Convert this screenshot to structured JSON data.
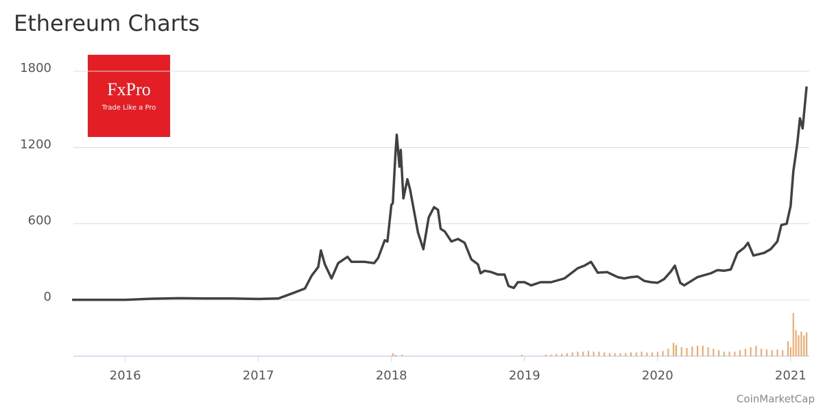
{
  "chart_data": {
    "type": "line",
    "title": "Ethereum Charts",
    "logo": "FxPro",
    "logo_tagline": "Trade Like a Pro",
    "credit": "CoinMarketCap",
    "color": "#404045",
    "x": [
      2015.6,
      2016.0,
      2016.2,
      2016.4,
      2016.6,
      2016.8,
      2017.0,
      2017.15,
      2017.25,
      2017.35,
      2017.4,
      2017.45,
      2017.47,
      2017.5,
      2017.55,
      2017.6,
      2017.67,
      2017.7,
      2017.8,
      2017.87,
      2017.9,
      2017.95,
      2017.97,
      2018.0,
      2018.01,
      2018.03,
      2018.04,
      2018.06,
      2018.07,
      2018.09,
      2018.12,
      2018.14,
      2018.17,
      2018.2,
      2018.24,
      2018.28,
      2018.32,
      2018.35,
      2018.37,
      2018.4,
      2018.45,
      2018.5,
      2018.55,
      2018.6,
      2018.65,
      2018.67,
      2018.7,
      2018.75,
      2018.8,
      2018.85,
      2018.88,
      2018.92,
      2018.95,
      2019.0,
      2019.05,
      2019.12,
      2019.2,
      2019.3,
      2019.4,
      2019.45,
      2019.5,
      2019.55,
      2019.62,
      2019.7,
      2019.75,
      2019.8,
      2019.85,
      2019.9,
      2019.95,
      2020.0,
      2020.05,
      2020.1,
      2020.13,
      2020.17,
      2020.2,
      2020.3,
      2020.4,
      2020.45,
      2020.5,
      2020.55,
      2020.6,
      2020.65,
      2020.68,
      2020.72,
      2020.8,
      2020.85,
      2020.9,
      2020.93,
      2020.97,
      2021.0,
      2021.02,
      2021.05,
      2021.07,
      2021.09,
      2021.12
    ],
    "values": [
      1,
      1,
      10,
      14,
      12,
      12,
      8,
      12,
      50,
      90,
      190,
      260,
      390,
      280,
      170,
      290,
      340,
      300,
      300,
      290,
      330,
      470,
      460,
      750,
      760,
      1150,
      1300,
      1050,
      1180,
      800,
      950,
      870,
      700,
      530,
      400,
      650,
      730,
      710,
      560,
      540,
      460,
      480,
      450,
      320,
      280,
      210,
      230,
      220,
      200,
      200,
      110,
      95,
      140,
      140,
      115,
      140,
      140,
      170,
      250,
      270,
      300,
      215,
      220,
      180,
      170,
      180,
      185,
      150,
      140,
      135,
      165,
      225,
      270,
      135,
      115,
      180,
      210,
      235,
      230,
      240,
      370,
      410,
      450,
      350,
      370,
      400,
      460,
      590,
      600,
      740,
      1010,
      1230,
      1430,
      1350,
      1680
    ],
    "volume": {
      "color": "#f4a460",
      "x": [
        2018.01,
        2018.03,
        2018.08,
        2018.98,
        2019.16,
        2019.2,
        2019.24,
        2019.28,
        2019.32,
        2019.36,
        2019.4,
        2019.44,
        2019.48,
        2019.52,
        2019.56,
        2019.6,
        2019.64,
        2019.68,
        2019.72,
        2019.76,
        2019.8,
        2019.84,
        2019.88,
        2019.92,
        2019.96,
        2020.0,
        2020.04,
        2020.08,
        2020.12,
        2020.14,
        2020.18,
        2020.22,
        2020.26,
        2020.3,
        2020.34,
        2020.38,
        2020.42,
        2020.46,
        2020.5,
        2020.54,
        2020.58,
        2020.62,
        2020.66,
        2020.7,
        2020.74,
        2020.78,
        2020.82,
        2020.86,
        2020.9,
        2020.94,
        2020.98,
        2021.0,
        2021.02,
        2021.04,
        2021.06,
        2021.08,
        2021.1,
        2021.12
      ],
      "values": [
        4,
        2,
        2,
        2,
        2,
        2,
        3,
        3,
        4,
        5,
        6,
        6,
        7,
        6,
        6,
        5,
        4,
        4,
        4,
        4,
        5,
        5,
        6,
        5,
        5,
        6,
        7,
        10,
        18,
        15,
        12,
        11,
        13,
        14,
        14,
        12,
        10,
        8,
        6,
        6,
        6,
        8,
        10,
        12,
        14,
        10,
        9,
        8,
        9,
        8,
        20,
        12,
        58,
        35,
        28,
        33,
        28,
        32
      ],
      "ylim": [
        0,
        70
      ]
    },
    "xlim": [
      2015.61,
      2021.14
    ],
    "xticks": [
      2016,
      2017,
      2018,
      2019,
      2020,
      2021
    ],
    "ylim": [
      0,
      1800
    ],
    "yticks": [
      0,
      600,
      1200,
      1800
    ],
    "grid": true
  }
}
